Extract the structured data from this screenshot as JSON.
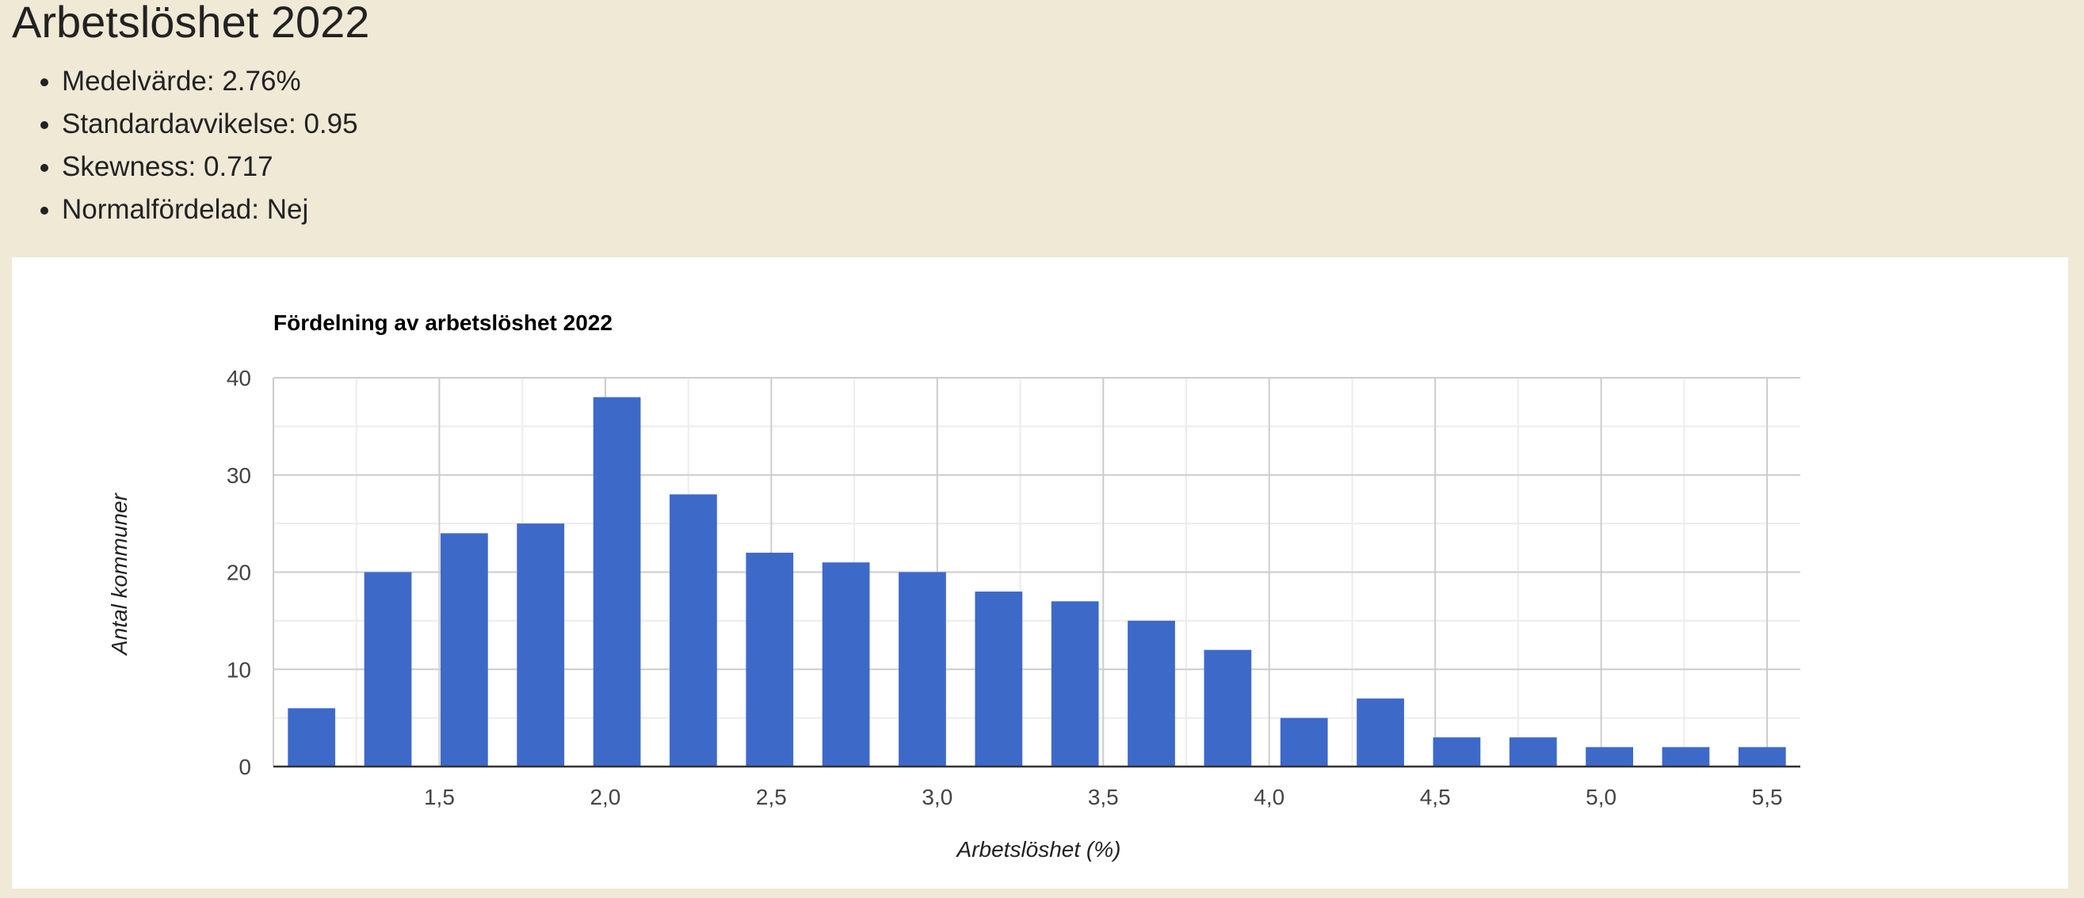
{
  "page": {
    "title": "Arbetslöshet 2022",
    "stats": [
      {
        "label": "Medelvärde",
        "value": "2.76%"
      },
      {
        "label": "Standardavvikelse",
        "value": "0.95"
      },
      {
        "label": "Skewness",
        "value": "0.717"
      },
      {
        "label": "Normalfördelad",
        "value": "Nej"
      }
    ]
  },
  "chart_data": {
    "type": "bar",
    "title": "Fördelning av arbetslöshet 2022",
    "xlabel": "Arbetslöshet (%)",
    "ylabel": "Antal kommuner",
    "xlim": [
      1.0,
      5.6
    ],
    "ylim": [
      0,
      40
    ],
    "bin_width": 0.23,
    "x": [
      1.115,
      1.345,
      1.575,
      1.805,
      2.035,
      2.265,
      2.495,
      2.725,
      2.955,
      3.185,
      3.415,
      3.645,
      3.875,
      4.105,
      4.335,
      4.565,
      4.795,
      5.025,
      5.255,
      5.485
    ],
    "values": [
      6,
      20,
      24,
      25,
      38,
      28,
      22,
      21,
      20,
      18,
      17,
      15,
      12,
      5,
      7,
      3,
      3,
      2,
      2,
      2
    ],
    "x_ticks": [
      1.5,
      2.0,
      2.5,
      3.0,
      3.5,
      4.0,
      4.5,
      5.0,
      5.5
    ],
    "x_tick_labels": [
      "1,5",
      "2,0",
      "2,5",
      "3,0",
      "3,5",
      "4,0",
      "4,5",
      "5,0",
      "5,5"
    ],
    "y_ticks": [
      0,
      10,
      20,
      30,
      40
    ],
    "y_tick_labels": [
      "0",
      "10",
      "20",
      "30",
      "40"
    ],
    "grid": true,
    "bar_color": "#3d69c9"
  }
}
